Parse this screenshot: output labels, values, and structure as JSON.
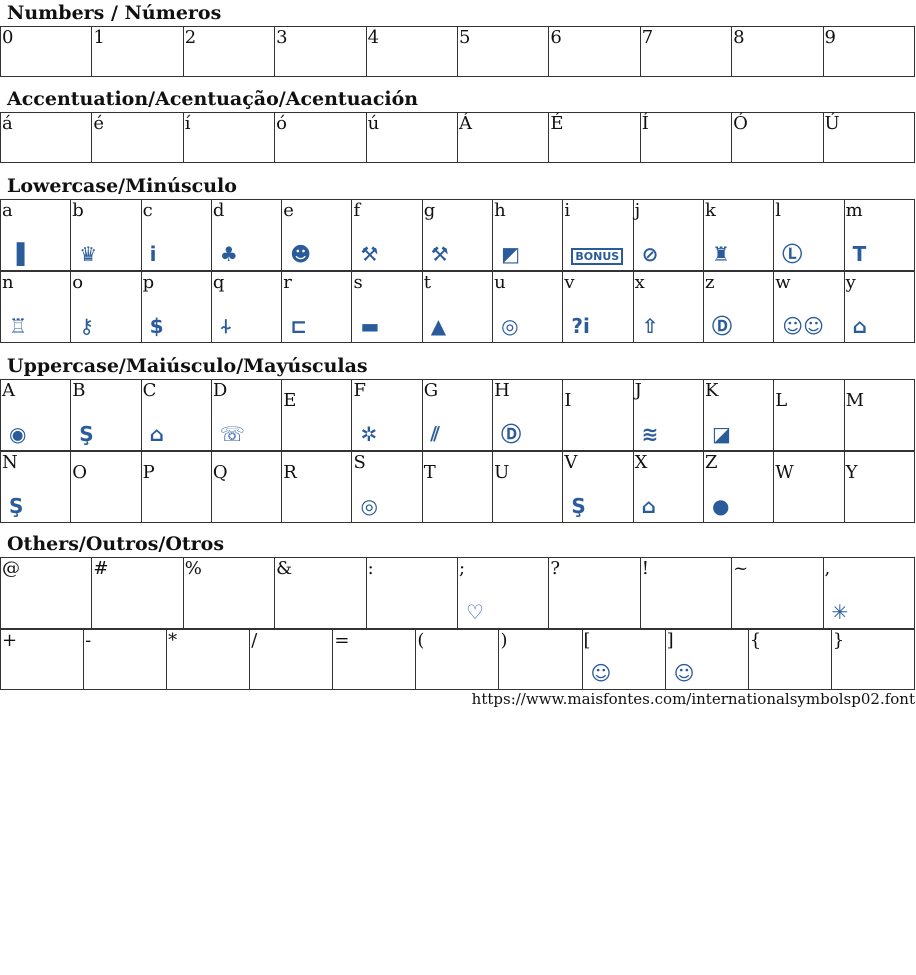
{
  "accent_color": "#2a5b9b",
  "sections": [
    {
      "title": "Numbers / Números",
      "rows": [
        [
          {
            "l": "0"
          },
          {
            "l": "1"
          },
          {
            "l": "2"
          },
          {
            "l": "3"
          },
          {
            "l": "4"
          },
          {
            "l": "5"
          },
          {
            "l": "6"
          },
          {
            "l": "7"
          },
          {
            "l": "8"
          },
          {
            "l": "9"
          }
        ]
      ]
    },
    {
      "title": "Accentuation/Acentuação/Acentuación",
      "rows": [
        [
          {
            "l": "á"
          },
          {
            "l": "é"
          },
          {
            "l": "í"
          },
          {
            "l": "ó"
          },
          {
            "l": "ú"
          },
          {
            "l": "Á"
          },
          {
            "l": "É"
          },
          {
            "l": "Í"
          },
          {
            "l": "Ó"
          },
          {
            "l": "Ú"
          }
        ]
      ]
    },
    {
      "title": "Lowercase/Minúsculo",
      "icons": true,
      "rows": [
        [
          {
            "l": "a",
            "i": "book-icon",
            "g": "▐"
          },
          {
            "l": "b",
            "i": "crown-icon",
            "g": "♛"
          },
          {
            "l": "c",
            "i": "info-icon",
            "g": "i"
          },
          {
            "l": "d",
            "i": "palm-island-icon",
            "g": "♣"
          },
          {
            "l": "e",
            "i": "pirate-icon",
            "g": "☻"
          },
          {
            "l": "f",
            "i": "hammers-icon",
            "g": "⚒"
          },
          {
            "l": "g",
            "i": "hammers-small-icon",
            "g": "⚒"
          },
          {
            "l": "h",
            "i": "deutsche-bank-icon",
            "g": "◩"
          },
          {
            "l": "i",
            "i": "bonus-icon",
            "g": "BONUS"
          },
          {
            "l": "j",
            "i": "ba-logo-icon",
            "g": "⊘"
          },
          {
            "l": "k",
            "i": "bkk-icon",
            "g": "♜"
          },
          {
            "l": "l",
            "i": "lh-icon",
            "g": "Ⓛ"
          },
          {
            "l": "m",
            "i": "tx-icon",
            "g": "T"
          }
        ],
        [
          {
            "l": "n",
            "i": "castle-wall-icon",
            "g": "♖"
          },
          {
            "l": "o",
            "i": "key-icon",
            "g": "⚷"
          },
          {
            "l": "p",
            "i": "dollar-icon",
            "g": "$"
          },
          {
            "l": "q",
            "i": "restaurant-icon",
            "g": "⍭"
          },
          {
            "l": "r",
            "i": "trailer-icon",
            "g": "⊏"
          },
          {
            "l": "s",
            "i": "truck-icon",
            "g": "▬"
          },
          {
            "l": "t",
            "i": "tent-icon",
            "g": "▲"
          },
          {
            "l": "u",
            "i": "seal-icon",
            "g": "◎"
          },
          {
            "l": "v",
            "i": "question-info-icon",
            "g": "?i"
          },
          {
            "l": "x",
            "i": "arrow-circle-icon",
            "g": "⇧"
          },
          {
            "l": "z",
            "i": "das-icon",
            "g": "Ⓓ"
          },
          {
            "l": "w",
            "i": "couple-icon",
            "g": "☺☺"
          },
          {
            "l": "y",
            "i": "building-icon",
            "g": "⌂"
          }
        ]
      ]
    },
    {
      "title": "Uppercase/Maiúsculo/Mayúsculas",
      "icons": true,
      "rows": [
        [
          {
            "l": "A",
            "i": "ring-circle-icon",
            "g": "◉"
          },
          {
            "l": "B",
            "i": "sparkasse-outline-icon",
            "g": "Ş"
          },
          {
            "l": "C",
            "i": "house-circle-icon",
            "g": "⌂"
          },
          {
            "l": "D",
            "i": "phone-circle-icon",
            "g": "☏"
          },
          {
            "l": "E"
          },
          {
            "l": "F",
            "i": "star-circle-icon",
            "g": "✲"
          },
          {
            "l": "G",
            "i": "stripes-icon",
            "g": "⫽"
          },
          {
            "l": "H",
            "i": "d-circle-icon",
            "g": "Ⓓ"
          },
          {
            "l": "I"
          },
          {
            "l": "J",
            "i": "waves-icon",
            "g": "≋"
          },
          {
            "l": "K",
            "i": "hearing-icon",
            "g": "◪"
          },
          {
            "l": "L"
          },
          {
            "l": "M"
          }
        ],
        [
          {
            "l": "N",
            "i": "sparkasse-icon",
            "g": "Ş"
          },
          {
            "l": "O"
          },
          {
            "l": "P"
          },
          {
            "l": "Q"
          },
          {
            "l": "R"
          },
          {
            "l": "S",
            "i": "horseshoe-circle-icon",
            "g": "◎"
          },
          {
            "l": "T"
          },
          {
            "l": "U"
          },
          {
            "l": "V",
            "i": "sparkasse-large-icon",
            "g": "Ş"
          },
          {
            "l": "X",
            "i": "house-tree-icon",
            "g": "⌂"
          },
          {
            "l": "Z",
            "i": "sparkasse-circle-icon",
            "g": "●"
          },
          {
            "l": "W"
          },
          {
            "l": "Y"
          }
        ]
      ]
    },
    {
      "title": "Others/Outros/Otros",
      "icons": true,
      "rows": [
        [
          {
            "l": "@"
          },
          {
            "l": "#"
          },
          {
            "l": "%"
          },
          {
            "l": "&"
          },
          {
            "l": ":"
          },
          {
            "l": ";",
            "i": "heart-seal-icon",
            "g": "♡"
          },
          {
            "l": "?"
          },
          {
            "l": "!"
          },
          {
            "l": "~"
          },
          {
            "l": ",",
            "i": "asterisk-icon",
            "g": "✳"
          }
        ],
        [
          {
            "l": "+"
          },
          {
            "l": "-"
          },
          {
            "l": "*"
          },
          {
            "l": "/"
          },
          {
            "l": "="
          },
          {
            "l": "("
          },
          {
            "l": ")"
          },
          {
            "l": "[",
            "i": "boy-face-icon",
            "g": "☺"
          },
          {
            "l": "]",
            "i": "girl-face-icon",
            "g": "☺"
          },
          {
            "l": "{"
          },
          {
            "l": "}"
          }
        ]
      ]
    }
  ],
  "footer_url": "https://www.maisfontes.com/internationalsymbolsp02.font"
}
